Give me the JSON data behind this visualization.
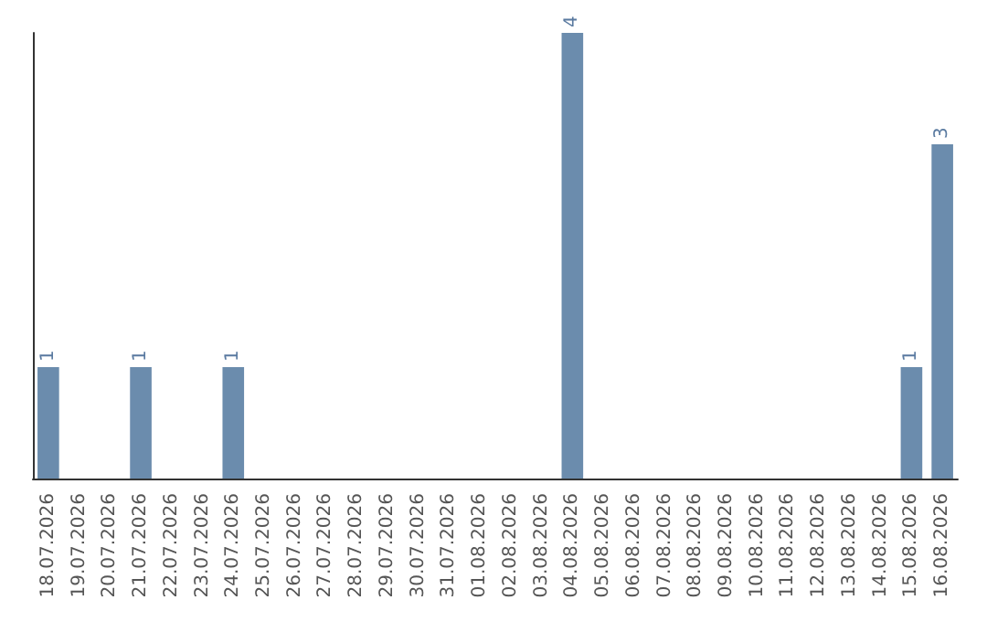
{
  "chart_data": {
    "type": "bar",
    "categories": [
      "18.07.2026",
      "19.07.2026",
      "20.07.2026",
      "21.07.2026",
      "22.07.2026",
      "23.07.2026",
      "24.07.2026",
      "25.07.2026",
      "26.07.2026",
      "27.07.2026",
      "28.07.2026",
      "29.07.2026",
      "30.07.2026",
      "31.07.2026",
      "01.08.2026",
      "02.08.2026",
      "03.08.2026",
      "04.08.2026",
      "05.08.2026",
      "06.08.2026",
      "07.08.2026",
      "08.08.2026",
      "09.08.2026",
      "10.08.2026",
      "11.08.2026",
      "12.08.2026",
      "13.08.2026",
      "14.08.2026",
      "15.08.2026",
      "16.08.2026"
    ],
    "values": [
      1,
      0,
      0,
      1,
      0,
      0,
      1,
      0,
      0,
      0,
      0,
      0,
      0,
      0,
      0,
      0,
      0,
      4,
      0,
      0,
      0,
      0,
      0,
      0,
      0,
      0,
      0,
      0,
      1,
      3
    ],
    "value_labels": [
      "1",
      null,
      null,
      "1",
      null,
      null,
      "1",
      null,
      null,
      null,
      null,
      null,
      null,
      null,
      null,
      null,
      null,
      "4",
      null,
      null,
      null,
      null,
      null,
      null,
      null,
      null,
      null,
      null,
      "1",
      "3"
    ],
    "color": "#6b8cad",
    "grid": false,
    "tick_labels": "x"
  }
}
